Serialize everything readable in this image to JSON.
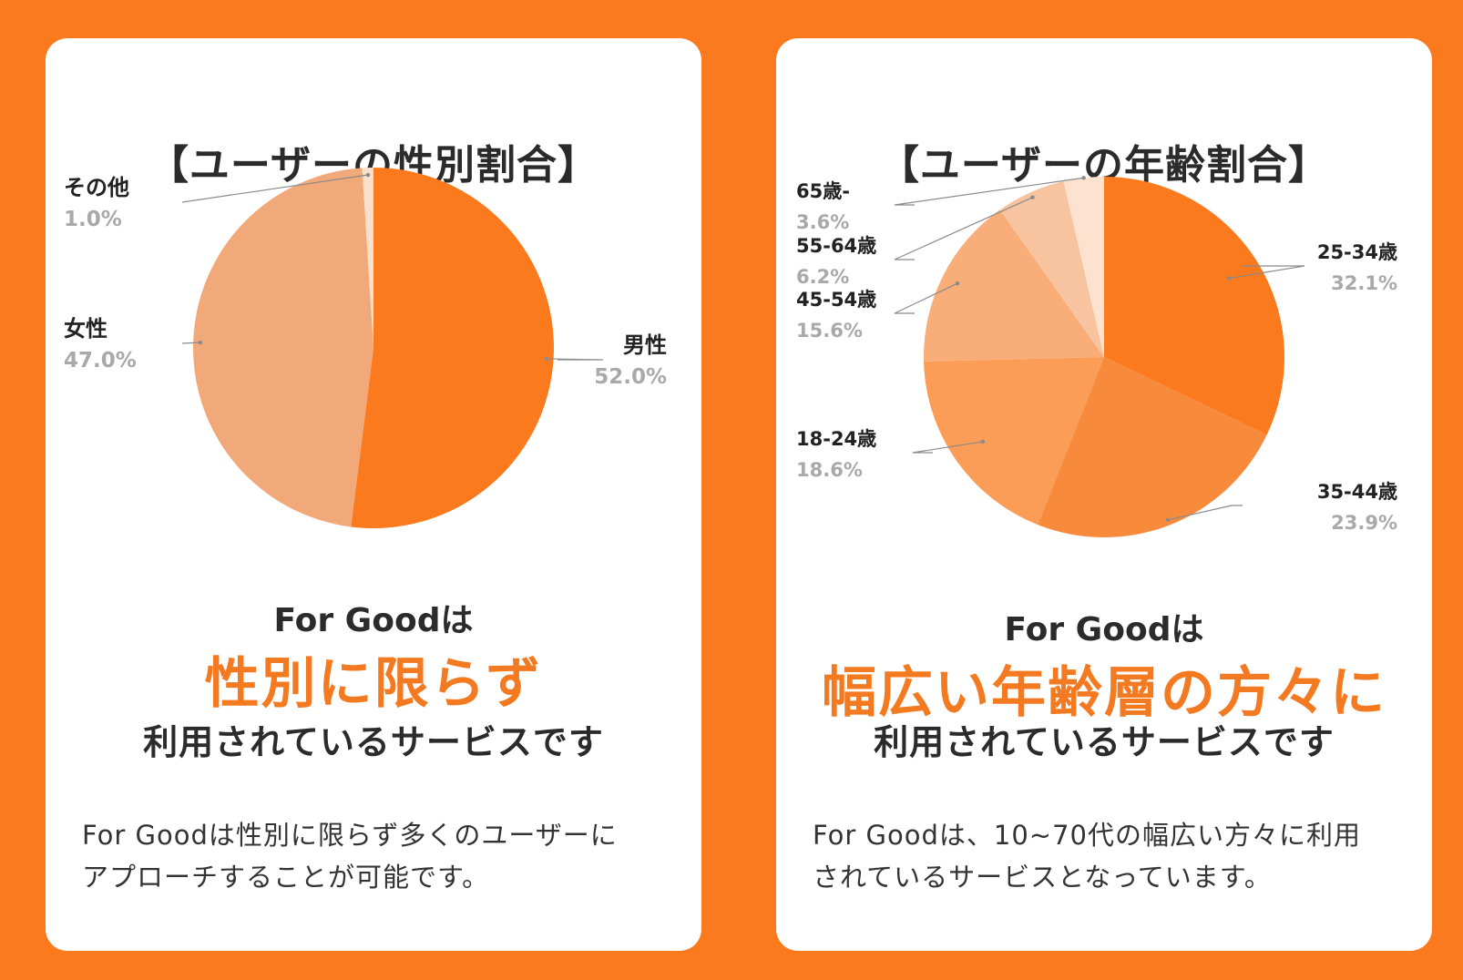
{
  "gender_card": {
    "title": "【ユーザーの性別割合】",
    "lead": "For Goodは",
    "highlight": "性別に限らず",
    "tail": "利用されているサービスです",
    "description_line1": "For Goodは性別に限らず多くのユーザーに",
    "description_line2": "アプローチすることが可能です。"
  },
  "age_card": {
    "title": "【ユーザーの年齢割合】",
    "lead": "For Goodは",
    "highlight": "幅広い年齢層の方々に",
    "tail": "利用されているサービスです",
    "description_line1": "For Goodは、10~70代の幅広い方々に利用",
    "description_line2": "されているサービスとなっています。"
  },
  "colors": {
    "background": "#fb7a1e",
    "accent": "#f47a22"
  },
  "chart_data": [
    {
      "type": "pie",
      "slices": [
        {
          "label": "男性",
          "value": 52.0,
          "display": "52.0%",
          "color": "#fb7a1e"
        },
        {
          "label": "女性",
          "value": 47.0,
          "display": "47.0%",
          "color": "#f2a97a"
        },
        {
          "label": "その他",
          "value": 1.0,
          "display": "1.0%",
          "color": "#fadfcd"
        }
      ]
    },
    {
      "type": "pie",
      "slices": [
        {
          "label": "25-34歳",
          "value": 32.1,
          "display": "32.1%",
          "color": "#fb7a1e"
        },
        {
          "label": "35-44歳",
          "value": 23.9,
          "display": "23.9%",
          "color": "#f88a3c"
        },
        {
          "label": "18-24歳",
          "value": 18.6,
          "display": "18.6%",
          "color": "#fb9c57"
        },
        {
          "label": "45-54歳",
          "value": 15.6,
          "display": "15.6%",
          "color": "#f9ad79"
        },
        {
          "label": "55-64歳",
          "value": 6.2,
          "display": "6.2%",
          "color": "#f8c4a0"
        },
        {
          "label": "65歳-",
          "value": 3.6,
          "display": "3.6%",
          "color": "#fde2d0"
        }
      ]
    }
  ]
}
